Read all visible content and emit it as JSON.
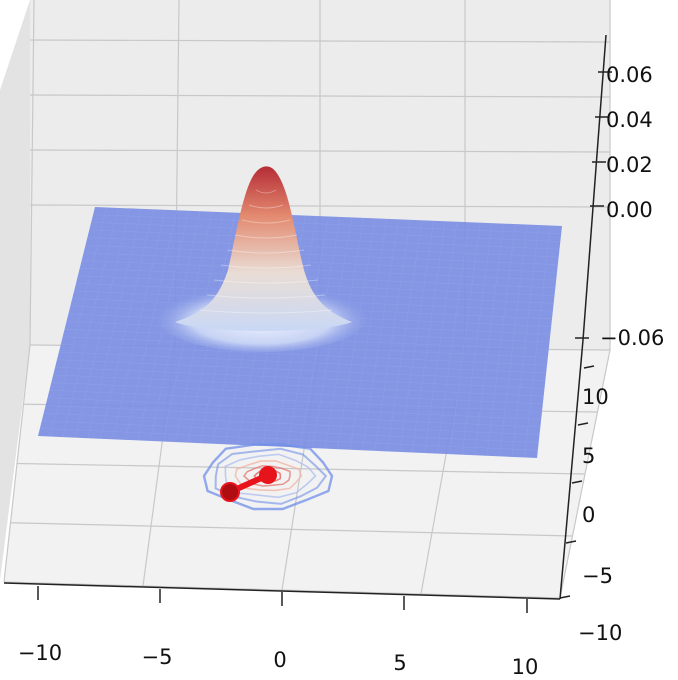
{
  "chart_data": {
    "type": "surface3d",
    "title": "",
    "xlabel": "",
    "ylabel": "",
    "zlabel": "",
    "x_ticks": [
      "−10",
      "−5",
      "0",
      "5",
      "10"
    ],
    "y_ticks": [
      "−10",
      "−5",
      "0",
      "5",
      "10"
    ],
    "z_ticks": [
      "−0.06",
      "0.00",
      "0.02",
      "0.04",
      "0.06"
    ],
    "xlim": [
      -10,
      10
    ],
    "ylim": [
      -10,
      10
    ],
    "zlim": [
      -0.06,
      0.07
    ],
    "grid": true,
    "colormap": "coolwarm",
    "colors": {
      "pane_floor": "#f2f2f2",
      "pane_wall": "#ececec",
      "surface_low": "#7b8ee3",
      "surface_mid": "#dde6f7",
      "surface_high": "#b52c35",
      "contour_outer": "#6f8fe8",
      "contour_inner": "#e46a5f",
      "marker": "#e8141b",
      "marker_dark": "#b00d12"
    },
    "surface_peak": {
      "x": 0,
      "y": 0,
      "z": 0.06
    },
    "contour_markers": [
      {
        "x": -2.5,
        "y": -2.0
      },
      {
        "x": 0.5,
        "y": 0.3
      }
    ]
  }
}
